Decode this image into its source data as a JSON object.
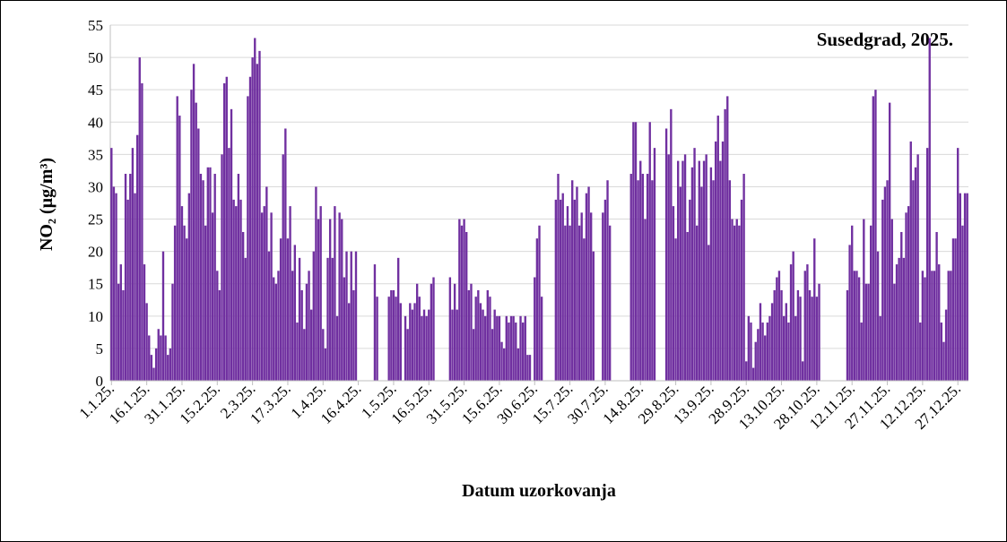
{
  "chart_data": {
    "type": "bar",
    "title": "Susedgrad, 2025.",
    "ylabel": "NO₂ (µg/m³)",
    "xlabel": "Datum uzorkovanja",
    "color": "#7030a0",
    "grid": true,
    "ylim": [
      0,
      55
    ],
    "yticks": [
      0,
      5,
      10,
      15,
      20,
      25,
      30,
      35,
      40,
      45,
      50,
      55
    ],
    "categories": [
      "1.1.25.",
      null,
      null,
      null,
      null,
      null,
      null,
      null,
      null,
      null,
      null,
      null,
      null,
      null,
      null,
      "16.1.25.",
      null,
      null,
      null,
      null,
      null,
      null,
      null,
      null,
      null,
      null,
      null,
      null,
      null,
      null,
      "31.1.25.",
      null,
      null,
      null,
      null,
      null,
      null,
      null,
      null,
      null,
      null,
      null,
      null,
      null,
      null,
      "15.2.25.",
      null,
      null,
      null,
      null,
      null,
      null,
      null,
      null,
      null,
      null,
      null,
      null,
      null,
      null,
      "2.3.25.",
      null,
      null,
      null,
      null,
      null,
      null,
      null,
      null,
      null,
      null,
      null,
      null,
      null,
      null,
      "17.3.25.",
      null,
      null,
      null,
      null,
      null,
      null,
      null,
      null,
      null,
      null,
      null,
      null,
      null,
      null,
      "1.4.25.",
      null,
      null,
      null,
      null,
      null,
      null,
      null,
      null,
      null,
      null,
      null,
      null,
      null,
      null,
      "16.4.25.",
      null,
      null,
      null,
      null,
      null,
      null,
      null,
      null,
      null,
      null,
      null,
      null,
      null,
      null,
      "1.5.25.",
      null,
      null,
      null,
      null,
      null,
      null,
      null,
      null,
      null,
      null,
      null,
      null,
      null,
      null,
      "16.5.25.",
      null,
      null,
      null,
      null,
      null,
      null,
      null,
      null,
      null,
      null,
      null,
      null,
      null,
      null,
      "31.5.25.",
      null,
      null,
      null,
      null,
      null,
      null,
      null,
      null,
      null,
      null,
      null,
      null,
      null,
      null,
      "15.6.25.",
      null,
      null,
      null,
      null,
      null,
      null,
      null,
      null,
      null,
      null,
      null,
      null,
      null,
      null,
      "30.6.25.",
      null,
      null,
      null,
      null,
      null,
      null,
      null,
      null,
      null,
      null,
      null,
      null,
      null,
      null,
      "15.7.25.",
      null,
      null,
      null,
      null,
      null,
      null,
      null,
      null,
      null,
      null,
      null,
      null,
      null,
      null,
      "30.7.25.",
      null,
      null,
      null,
      null,
      null,
      null,
      null,
      null,
      null,
      null,
      null,
      null,
      null,
      null,
      "14.8.25.",
      null,
      null,
      null,
      null,
      null,
      null,
      null,
      null,
      null,
      null,
      null,
      null,
      null,
      null,
      "29.8.25.",
      null,
      null,
      null,
      null,
      null,
      null,
      null,
      null,
      null,
      null,
      null,
      null,
      null,
      null,
      "13.9.25.",
      null,
      null,
      null,
      null,
      null,
      null,
      null,
      null,
      null,
      null,
      null,
      null,
      null,
      null,
      "28.9.25.",
      null,
      null,
      null,
      null,
      null,
      null,
      null,
      null,
      null,
      null,
      null,
      null,
      null,
      null,
      "13.10.25.",
      null,
      null,
      null,
      null,
      null,
      null,
      null,
      null,
      null,
      null,
      null,
      null,
      null,
      null,
      "28.10.25.",
      null,
      null,
      null,
      null,
      null,
      null,
      null,
      null,
      null,
      null,
      null,
      null,
      null,
      null,
      "12.11.25.",
      null,
      null,
      null,
      null,
      null,
      null,
      null,
      null,
      null,
      null,
      null,
      null,
      null,
      null,
      "27.11.25.",
      null,
      null,
      null,
      null,
      null,
      null,
      null,
      null,
      null,
      null,
      null,
      null,
      null,
      null,
      "12.12.25.",
      null,
      null,
      null,
      null,
      null,
      null,
      null,
      null,
      null,
      null,
      null,
      null,
      null,
      null,
      "27.12.25.",
      null,
      null,
      null,
      null
    ],
    "values": [
      36,
      30,
      29,
      15,
      18,
      14,
      32,
      28,
      32,
      36,
      29,
      38,
      50,
      46,
      18,
      12,
      7,
      4,
      2,
      5,
      8,
      7,
      20,
      7,
      4,
      5,
      15,
      24,
      44,
      41,
      27,
      24,
      22,
      29,
      45,
      49,
      43,
      39,
      32,
      31,
      24,
      33,
      33,
      26,
      32,
      17,
      14,
      35,
      46,
      47,
      36,
      42,
      28,
      27,
      32,
      28,
      23,
      19,
      44,
      47,
      50,
      53,
      49,
      51,
      26,
      27,
      30,
      20,
      26,
      16,
      15,
      17,
      22,
      35,
      39,
      22,
      27,
      17,
      21,
      9,
      19,
      14,
      8,
      15,
      17,
      11,
      20,
      30,
      25,
      27,
      8,
      5,
      19,
      25,
      19,
      27,
      10,
      26,
      25,
      16,
      20,
      12,
      20,
      14,
      20,
      null,
      null,
      null,
      null,
      null,
      null,
      null,
      18,
      13,
      null,
      null,
      null,
      null,
      13,
      14,
      14,
      13,
      19,
      12,
      null,
      10,
      8,
      12,
      11,
      12,
      15,
      13,
      10,
      11,
      10,
      11,
      15,
      16,
      null,
      null,
      null,
      null,
      null,
      null,
      16,
      11,
      15,
      11,
      25,
      24,
      25,
      23,
      14,
      15,
      8,
      13,
      14,
      12,
      11,
      10,
      14,
      13,
      8,
      11,
      10,
      10,
      6,
      5,
      10,
      9,
      10,
      10,
      9,
      5,
      10,
      9,
      10,
      4,
      4,
      null,
      16,
      22,
      24,
      13,
      null,
      null,
      null,
      null,
      null,
      28,
      32,
      28,
      29,
      24,
      27,
      24,
      31,
      28,
      30,
      24,
      26,
      22,
      29,
      30,
      26,
      20,
      null,
      null,
      null,
      26,
      28,
      31,
      24,
      null,
      null,
      null,
      null,
      null,
      null,
      null,
      null,
      32,
      40,
      40,
      31,
      34,
      32,
      25,
      32,
      40,
      31,
      36,
      null,
      null,
      null,
      null,
      39,
      35,
      42,
      27,
      22,
      34,
      30,
      34,
      35,
      23,
      28,
      33,
      36,
      24,
      34,
      30,
      34,
      35,
      21,
      33,
      31,
      37,
      41,
      34,
      37,
      42,
      44,
      31,
      25,
      24,
      25,
      24,
      28,
      32,
      3,
      10,
      9,
      2,
      6,
      8,
      12,
      9,
      7,
      9,
      10,
      12,
      14,
      16,
      17,
      14,
      10,
      12,
      9,
      18,
      20,
      10,
      14,
      13,
      3,
      17,
      18,
      14,
      13,
      22,
      13,
      15,
      null,
      null,
      null,
      null,
      null,
      null,
      null,
      null,
      null,
      null,
      null,
      14,
      21,
      24,
      17,
      17,
      16,
      9,
      25,
      15,
      15,
      24,
      44,
      45,
      20,
      10,
      28,
      30,
      31,
      43,
      25,
      15,
      18,
      19,
      23,
      19,
      26,
      27,
      37,
      31,
      33,
      35,
      9,
      17,
      16,
      36,
      53,
      17,
      17,
      23,
      18,
      9,
      6,
      11,
      17,
      17,
      22,
      22,
      36,
      29,
      24,
      29,
      29
    ]
  }
}
